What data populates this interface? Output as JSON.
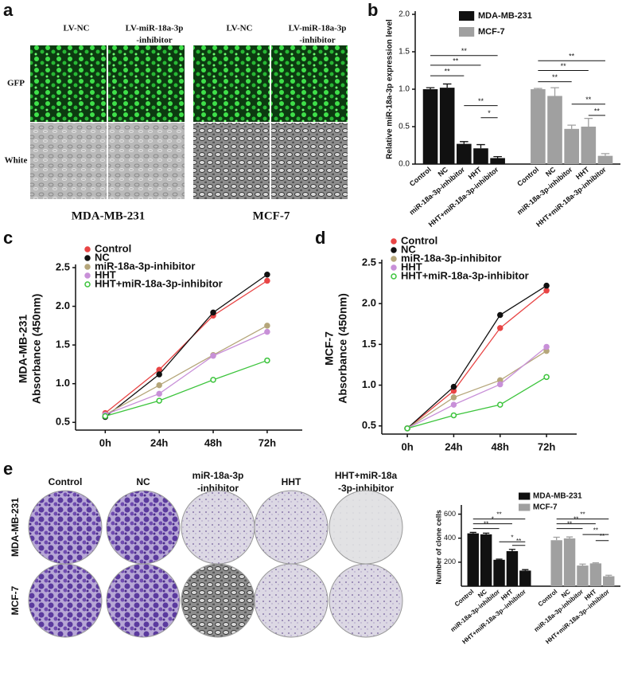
{
  "figure": {
    "a": {
      "panel": "a",
      "columns": [
        [
          "LV-NC"
        ],
        [
          "LV-miR-18a-3p",
          "-inhibitor"
        ],
        [
          "LV-NC"
        ],
        [
          "LV-miR-18a-3p",
          "-inhibitor"
        ]
      ],
      "rows": [
        "GFP",
        "White"
      ],
      "cell_lines": [
        "MDA-MB-231",
        "MCF-7"
      ]
    },
    "e": {
      "panel": "e",
      "columns": [
        [
          "Control"
        ],
        [
          "NC"
        ],
        [
          "miR-18a-3p",
          "-inhibitor"
        ],
        [
          "HHT"
        ],
        [
          "HHT+miR-18a",
          "-3p-inhibitor"
        ]
      ],
      "rows": [
        "MDA-MB-231",
        "MCF-7"
      ]
    }
  },
  "chart_data": [
    {
      "type": "bar",
      "panel": "b",
      "ylabel": [
        "Relative miR-18a-3p expression level"
      ],
      "categories": [
        "Control",
        "NC",
        "miR-18a-3p-inhibitor",
        "HHT",
        "HHT+miR-18a-3p-inhibitor"
      ],
      "series": [
        {
          "name": "MDA-MB-231",
          "color": "#111111",
          "values": [
            1.0,
            1.02,
            0.27,
            0.21,
            0.08
          ],
          "errors": [
            0.02,
            0.05,
            0.03,
            0.05,
            0.02
          ]
        },
        {
          "name": "MCF-7",
          "color": "#a0a0a0",
          "values": [
            1.0,
            0.91,
            0.47,
            0.5,
            0.11
          ],
          "errors": [
            0.01,
            0.11,
            0.05,
            0.11,
            0.03
          ]
        }
      ],
      "significance": [
        [
          "**",
          "**",
          "**",
          "**",
          "*"
        ],
        [
          "**",
          "**",
          "**",
          "**",
          "**"
        ]
      ],
      "ylim": [
        0,
        2
      ],
      "yticks": [
        {
          "value": 0,
          "label": "0.0"
        },
        0.5,
        {
          "value": 1,
          "label": "1.0"
        },
        1.5,
        {
          "value": 2,
          "label": "2.0"
        }
      ],
      "legend": "top-right"
    },
    {
      "type": "line",
      "panel": "c",
      "ylabel": [
        "MDA-MB-231",
        "Absorbance (450nm)"
      ],
      "categories": [
        "0h",
        "24h",
        "48h",
        "72h"
      ],
      "series": [
        {
          "name": "Control",
          "color": "#e84545",
          "values": [
            0.62,
            1.18,
            1.88,
            2.33
          ]
        },
        {
          "name": "NC",
          "color": "#111111",
          "values": [
            0.57,
            1.12,
            1.92,
            2.41
          ]
        },
        {
          "name": "miR-18a-3p-inhibitor",
          "color": "#b5a67a",
          "values": [
            0.6,
            0.98,
            1.37,
            1.75
          ]
        },
        {
          "name": "HHT",
          "color": "#c890d8",
          "values": [
            0.6,
            0.87,
            1.36,
            1.67
          ]
        },
        {
          "name": "HHT+miR-18a-3p-inhibitor",
          "color": "#3cc43c",
          "values": [
            0.58,
            0.78,
            1.05,
            1.3
          ]
        }
      ],
      "ylim": [
        0.4,
        2.5
      ],
      "yticks": [
        0.5,
        {
          "value": 1,
          "label": "1.0"
        },
        1.5,
        {
          "value": 2,
          "label": "2.0"
        },
        2.5
      ],
      "legend": "top-left"
    },
    {
      "type": "line",
      "panel": "d",
      "ylabel": [
        "MCF-7",
        "Absorbance (450nm)"
      ],
      "categories": [
        "0h",
        "24h",
        "48h",
        "72h"
      ],
      "series": [
        {
          "name": "Control",
          "color": "#e84545",
          "values": [
            0.47,
            0.93,
            1.7,
            2.16
          ]
        },
        {
          "name": "NC",
          "color": "#111111",
          "values": [
            0.47,
            0.98,
            1.86,
            2.22
          ]
        },
        {
          "name": "miR-18a-3p-inhibitor",
          "color": "#b5a67a",
          "values": [
            0.47,
            0.85,
            1.06,
            1.42
          ]
        },
        {
          "name": "HHT",
          "color": "#c890d8",
          "values": [
            0.47,
            0.76,
            1.01,
            1.47
          ]
        },
        {
          "name": "HHT+miR-18a-3p-inhibitor",
          "color": "#3cc43c",
          "values": [
            0.47,
            0.63,
            0.76,
            1.1
          ]
        }
      ],
      "ylim": [
        0.4,
        2.5
      ],
      "yticks": [
        0.5,
        {
          "value": 1,
          "label": "1.0"
        },
        1.5,
        {
          "value": 2,
          "label": "2.0"
        },
        2.5
      ],
      "legend": "top-left"
    },
    {
      "type": "bar",
      "panel": "e",
      "ylabel": [
        "Number of clone cells"
      ],
      "categories": [
        "Control",
        "NC",
        "miR-18a-3p-inhibitor",
        "HHT",
        "HHT+miR-18a-3p--inhibitor"
      ],
      "series": [
        {
          "name": "MDA-MB-231",
          "color": "#111111",
          "values": [
            440,
            432,
            220,
            292,
            130
          ],
          "errors": [
            8,
            10,
            5,
            15,
            8
          ]
        },
        {
          "name": "MCF-7",
          "color": "#a0a0a0",
          "values": [
            383,
            398,
            172,
            190,
            83
          ],
          "errors": [
            25,
            12,
            12,
            5,
            8
          ]
        }
      ],
      "significance": [
        [
          "**",
          "*",
          "**",
          "*",
          "**"
        ],
        [
          "**",
          "**",
          "**",
          "**",
          "**"
        ]
      ],
      "ylim": [
        0,
        650
      ],
      "yticks": [
        200,
        400,
        600
      ],
      "legend": "top-right"
    }
  ]
}
